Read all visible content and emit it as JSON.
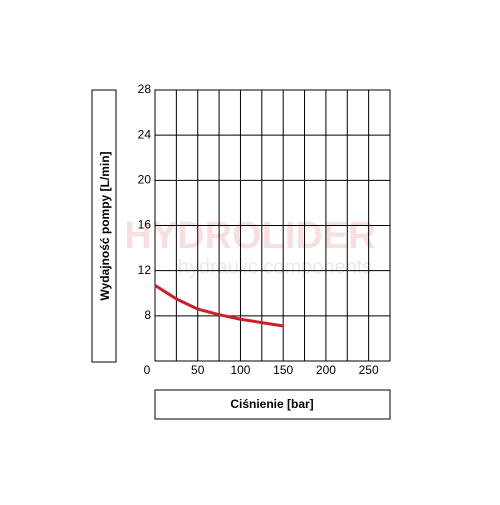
{
  "chart_data": {
    "type": "line",
    "x_label": "Ciśnienie [bar]",
    "y_label": "Wydajność pompy [L/min]",
    "watermark": [
      "HYDROLIDER",
      "hydraulic components"
    ],
    "x": [
      0,
      25,
      50,
      75,
      100,
      125,
      150
    ],
    "series": [
      {
        "color": "#cc1f2b",
        "values": [
          10.7,
          9.5,
          8.6,
          8.1,
          7.7,
          7.4,
          7.1
        ]
      }
    ],
    "xlim": [
      0,
      275
    ],
    "xticks": [
      0,
      50,
      100,
      150,
      200,
      250
    ],
    "xgrid": [
      0,
      25,
      50,
      75,
      100,
      125,
      150,
      175,
      200,
      225,
      250,
      275
    ],
    "ylim": [
      4,
      28
    ],
    "yticks": [
      8,
      12,
      16,
      20,
      24,
      28
    ],
    "grid": true
  }
}
